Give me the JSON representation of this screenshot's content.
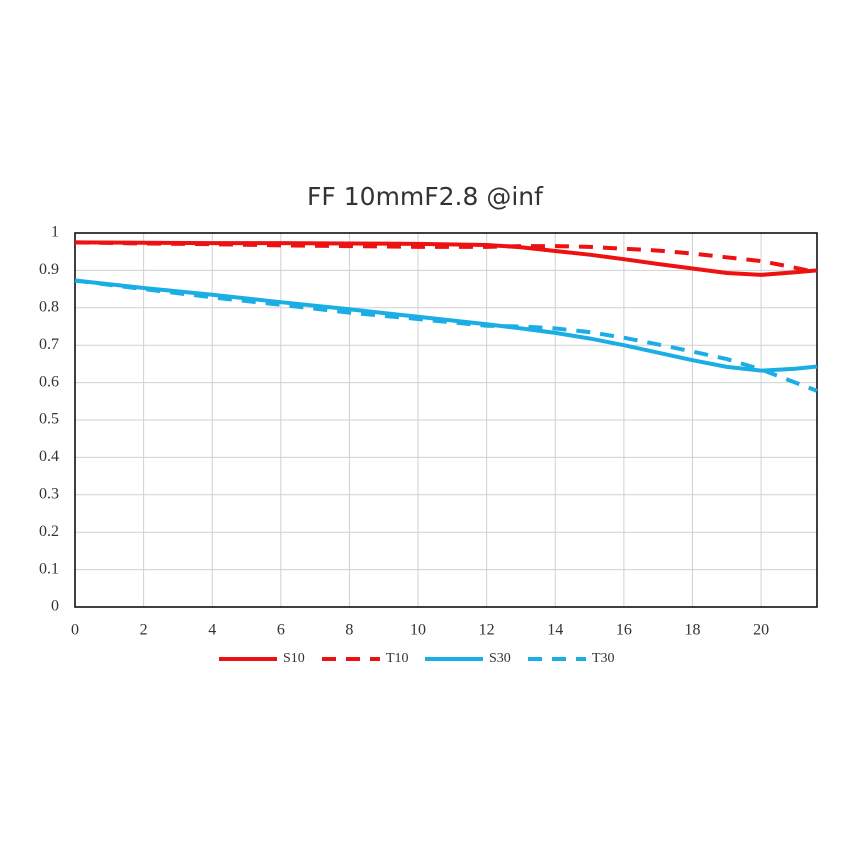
{
  "chart_data": {
    "type": "line",
    "title": "FF 10mmF2.8 @inf",
    "x": [
      0,
      2,
      4,
      6,
      8,
      10,
      12,
      13,
      14,
      15,
      16,
      17,
      18,
      19,
      20,
      21,
      21.63
    ],
    "series": [
      {
        "name": "S10",
        "color": "#ee1111",
        "dashed": false,
        "values": [
          0.975,
          0.974,
          0.973,
          0.973,
          0.972,
          0.971,
          0.968,
          0.962,
          0.952,
          0.942,
          0.93,
          0.917,
          0.905,
          0.893,
          0.888,
          0.895,
          0.9
        ]
      },
      {
        "name": "T10",
        "color": "#ee1111",
        "dashed": true,
        "values": [
          0.975,
          0.972,
          0.97,
          0.967,
          0.965,
          0.963,
          0.963,
          0.965,
          0.965,
          0.963,
          0.958,
          0.953,
          0.945,
          0.935,
          0.925,
          0.907,
          0.895
        ]
      },
      {
        "name": "S30",
        "color": "#1aaee5",
        "dashed": false,
        "values": [
          0.873,
          0.853,
          0.835,
          0.815,
          0.796,
          0.776,
          0.756,
          0.745,
          0.733,
          0.718,
          0.7,
          0.68,
          0.66,
          0.642,
          0.632,
          0.637,
          0.643
        ]
      },
      {
        "name": "T30",
        "color": "#1aaee5",
        "dashed": true,
        "values": [
          0.873,
          0.85,
          0.828,
          0.808,
          0.787,
          0.77,
          0.752,
          0.75,
          0.745,
          0.735,
          0.72,
          0.702,
          0.683,
          0.663,
          0.635,
          0.6,
          0.578
        ]
      }
    ],
    "xlim": [
      0,
      21.63
    ],
    "xticks": [
      0,
      2,
      4,
      6,
      8,
      10,
      12,
      14,
      16,
      18,
      20
    ],
    "ylim": [
      0,
      1
    ],
    "yticks": [
      0,
      0.1,
      0.2,
      0.3,
      0.4,
      0.5,
      0.6,
      0.7,
      0.8,
      0.9,
      1
    ],
    "grid": true,
    "legend": "bottom"
  }
}
